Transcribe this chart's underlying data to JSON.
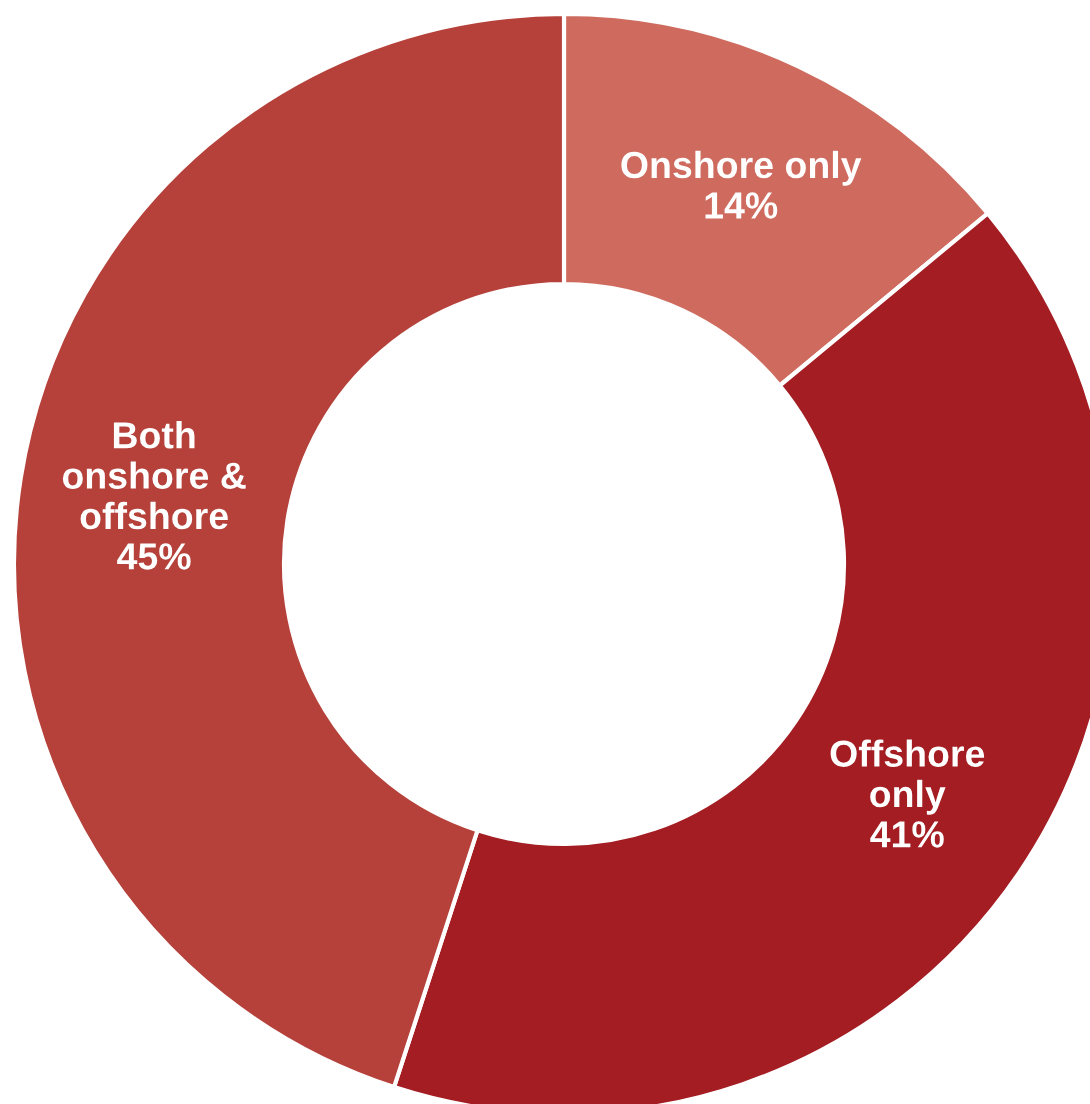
{
  "chart_data": {
    "type": "donut",
    "categories": [
      "Onshore only",
      "Offshore\nonly",
      "Both\nonshore &\noffshore"
    ],
    "values": [
      14,
      41,
      45
    ],
    "value_labels": [
      "14%",
      "41%",
      "45%"
    ],
    "colors": [
      "#cf6b5e",
      "#a31d22",
      "#b5413a"
    ]
  }
}
